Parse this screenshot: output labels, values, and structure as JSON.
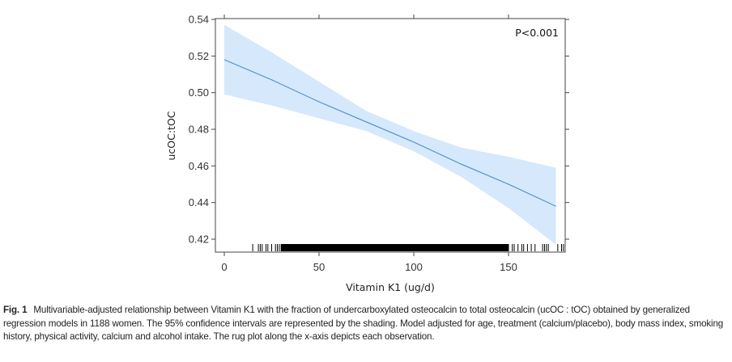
{
  "chart_data": {
    "type": "line",
    "xlabel": "Vitamin K1 (ug/d)",
    "ylabel": "ucOC:tOC",
    "xlim": [
      -5,
      180
    ],
    "ylim": [
      0.413,
      0.543
    ],
    "xticks": [
      0,
      50,
      100,
      150
    ],
    "yticks": [
      0.42,
      0.44,
      0.46,
      0.48,
      0.5,
      0.52,
      0.54
    ],
    "ytick_labels": [
      "0.42",
      "0.44",
      "0.46",
      "0.48",
      "0.50",
      "0.52",
      "0.54"
    ],
    "grid": false,
    "annotation": "P<0.001",
    "series": [
      {
        "x": [
          0,
          25,
          50,
          75,
          100,
          125,
          150,
          175
        ],
        "y": [
          0.518,
          0.507,
          0.495,
          0.484,
          0.473,
          0.461,
          0.45,
          0.438
        ],
        "ci_lower": [
          0.499,
          0.493,
          0.486,
          0.479,
          0.468,
          0.454,
          0.437,
          0.417
        ],
        "ci_upper": [
          0.537,
          0.522,
          0.506,
          0.49,
          0.479,
          0.47,
          0.465,
          0.459
        ]
      }
    ],
    "line_color": "#4a90c8",
    "ci_color": "#d6e8fb",
    "rug": {
      "sparse_values": [
        15,
        18,
        19,
        20,
        22,
        23,
        25,
        27,
        28,
        29,
        152,
        153,
        155,
        157,
        158,
        160,
        162,
        164,
        168,
        169,
        170,
        171,
        176,
        178,
        179
      ],
      "dense_range": [
        30,
        150
      ]
    }
  },
  "caption": {
    "label": "Fig. 1",
    "text": "Multivariable-adjusted relationship between Vitamin K1 with the fraction of undercarboxylated osteocalcin to total osteocalcin (ucOC : tOC) obtained by generalized regression models in 1188 women. The 95% confidence intervals are represented by the shading. Model adjusted for age, treatment (calcium/placebo), body mass index, smoking history, physical activity, calcium and alcohol intake. The rug plot along the x-axis depicts each observation."
  }
}
